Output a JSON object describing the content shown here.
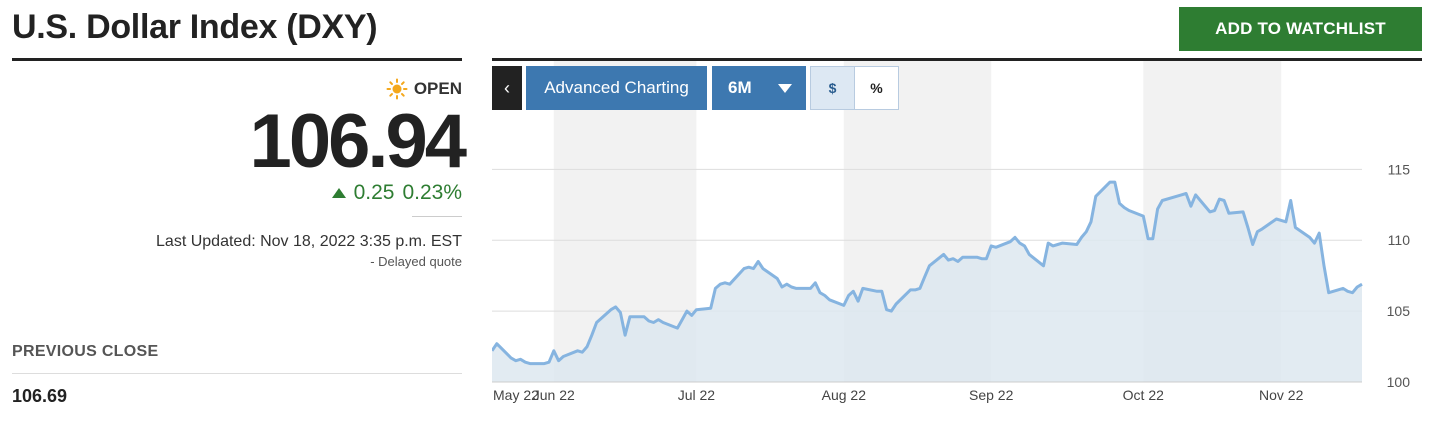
{
  "header": {
    "title": "U.S. Dollar Index (DXY)",
    "watchlist_label": "ADD TO WATCHLIST"
  },
  "quote": {
    "market_status": "OPEN",
    "price": "106.94",
    "change": "0.25",
    "change_pct": "0.23%",
    "last_updated": "Last Updated: Nov 18, 2022 3:35 p.m. EST",
    "delayed_note": "-  Delayed quote",
    "positive_color": "#2e7d32"
  },
  "previous_close": {
    "label": "PREVIOUS CLOSE",
    "value": "106.69"
  },
  "toolbar": {
    "back_label": "‹",
    "advanced_label": "Advanced Charting",
    "range_label": "6M",
    "dollar_label": "$",
    "percent_label": "%"
  },
  "chart_data": {
    "type": "area",
    "line_color": "#86b4e0",
    "fill_color": "#dde8f0",
    "ylim": [
      100,
      117
    ],
    "y_ticks": [
      "100",
      "105",
      "110",
      "115"
    ],
    "x_ticks": [
      {
        "label": "May 22",
        "date": "2022-05-19"
      },
      {
        "label": "Jun 22",
        "date": "2022-06-01"
      },
      {
        "label": "Jul 22",
        "date": "2022-07-01"
      },
      {
        "label": "Aug 22",
        "date": "2022-08-01"
      },
      {
        "label": "Sep 22",
        "date": "2022-09-01"
      },
      {
        "label": "Oct 22",
        "date": "2022-10-03"
      },
      {
        "label": "Nov 22",
        "date": "2022-11-01"
      }
    ],
    "x_range": [
      "2022-05-19",
      "2022-11-18"
    ],
    "month_bands": [
      [
        "2022-06-01",
        "2022-07-01"
      ],
      [
        "2022-08-01",
        "2022-09-01"
      ],
      [
        "2022-10-03",
        "2022-11-01"
      ]
    ],
    "series": [
      {
        "points": [
          [
            "2022-05-19",
            102.2
          ],
          [
            "2022-05-20",
            102.7
          ],
          [
            "2022-05-23",
            101.7
          ],
          [
            "2022-05-24",
            101.5
          ],
          [
            "2022-05-25",
            101.6
          ],
          [
            "2022-05-26",
            101.4
          ],
          [
            "2022-05-27",
            101.3
          ],
          [
            "2022-05-30",
            101.3
          ],
          [
            "2022-05-31",
            101.4
          ],
          [
            "2022-06-01",
            102.2
          ],
          [
            "2022-06-02",
            101.5
          ],
          [
            "2022-06-03",
            101.8
          ],
          [
            "2022-06-06",
            102.2
          ],
          [
            "2022-06-07",
            102.1
          ],
          [
            "2022-06-08",
            102.5
          ],
          [
            "2022-06-09",
            103.3
          ],
          [
            "2022-06-10",
            104.2
          ],
          [
            "2022-06-13",
            105.1
          ],
          [
            "2022-06-14",
            105.3
          ],
          [
            "2022-06-15",
            104.9
          ],
          [
            "2022-06-16",
            103.3
          ],
          [
            "2022-06-17",
            104.6
          ],
          [
            "2022-06-20",
            104.6
          ],
          [
            "2022-06-21",
            104.3
          ],
          [
            "2022-06-22",
            104.2
          ],
          [
            "2022-06-23",
            104.4
          ],
          [
            "2022-06-24",
            104.2
          ],
          [
            "2022-06-27",
            103.8
          ],
          [
            "2022-06-28",
            104.4
          ],
          [
            "2022-06-29",
            105.0
          ],
          [
            "2022-06-30",
            104.7
          ],
          [
            "2022-07-01",
            105.1
          ],
          [
            "2022-07-04",
            105.2
          ],
          [
            "2022-07-05",
            106.6
          ],
          [
            "2022-07-06",
            106.9
          ],
          [
            "2022-07-07",
            107.0
          ],
          [
            "2022-07-08",
            106.9
          ],
          [
            "2022-07-11",
            108.0
          ],
          [
            "2022-07-12",
            108.1
          ],
          [
            "2022-07-13",
            108.0
          ],
          [
            "2022-07-14",
            108.5
          ],
          [
            "2022-07-15",
            108.0
          ],
          [
            "2022-07-18",
            107.3
          ],
          [
            "2022-07-19",
            106.7
          ],
          [
            "2022-07-20",
            106.9
          ],
          [
            "2022-07-21",
            106.7
          ],
          [
            "2022-07-22",
            106.6
          ],
          [
            "2022-07-25",
            106.6
          ],
          [
            "2022-07-26",
            107.0
          ],
          [
            "2022-07-27",
            106.3
          ],
          [
            "2022-07-28",
            106.1
          ],
          [
            "2022-07-29",
            105.8
          ],
          [
            "2022-08-01",
            105.4
          ],
          [
            "2022-08-02",
            106.1
          ],
          [
            "2022-08-03",
            106.4
          ],
          [
            "2022-08-04",
            105.7
          ],
          [
            "2022-08-05",
            106.6
          ],
          [
            "2022-08-08",
            106.4
          ],
          [
            "2022-08-09",
            106.4
          ],
          [
            "2022-08-10",
            105.1
          ],
          [
            "2022-08-11",
            105.0
          ],
          [
            "2022-08-12",
            105.5
          ],
          [
            "2022-08-15",
            106.5
          ],
          [
            "2022-08-16",
            106.5
          ],
          [
            "2022-08-17",
            106.6
          ],
          [
            "2022-08-18",
            107.4
          ],
          [
            "2022-08-19",
            108.2
          ],
          [
            "2022-08-22",
            109.0
          ],
          [
            "2022-08-23",
            108.6
          ],
          [
            "2022-08-24",
            108.7
          ],
          [
            "2022-08-25",
            108.5
          ],
          [
            "2022-08-26",
            108.8
          ],
          [
            "2022-08-29",
            108.8
          ],
          [
            "2022-08-30",
            108.7
          ],
          [
            "2022-08-31",
            108.7
          ],
          [
            "2022-09-01",
            109.6
          ],
          [
            "2022-09-02",
            109.5
          ],
          [
            "2022-09-05",
            109.9
          ],
          [
            "2022-09-06",
            110.2
          ],
          [
            "2022-09-07",
            109.8
          ],
          [
            "2022-09-08",
            109.6
          ],
          [
            "2022-09-09",
            109.0
          ],
          [
            "2022-09-12",
            108.2
          ],
          [
            "2022-09-13",
            109.8
          ],
          [
            "2022-09-14",
            109.6
          ],
          [
            "2022-09-15",
            109.7
          ],
          [
            "2022-09-16",
            109.8
          ],
          [
            "2022-09-19",
            109.7
          ],
          [
            "2022-09-20",
            110.2
          ],
          [
            "2022-09-21",
            110.6
          ],
          [
            "2022-09-22",
            111.3
          ],
          [
            "2022-09-23",
            113.1
          ],
          [
            "2022-09-26",
            114.1
          ],
          [
            "2022-09-27",
            114.1
          ],
          [
            "2022-09-28",
            112.6
          ],
          [
            "2022-09-29",
            112.3
          ],
          [
            "2022-09-30",
            112.1
          ],
          [
            "2022-10-03",
            111.7
          ],
          [
            "2022-10-04",
            110.1
          ],
          [
            "2022-10-05",
            110.1
          ],
          [
            "2022-10-06",
            112.2
          ],
          [
            "2022-10-07",
            112.8
          ],
          [
            "2022-10-10",
            113.1
          ],
          [
            "2022-10-11",
            113.2
          ],
          [
            "2022-10-12",
            113.3
          ],
          [
            "2022-10-13",
            112.4
          ],
          [
            "2022-10-14",
            113.2
          ],
          [
            "2022-10-17",
            112.0
          ],
          [
            "2022-10-18",
            112.1
          ],
          [
            "2022-10-19",
            112.9
          ],
          [
            "2022-10-20",
            112.8
          ],
          [
            "2022-10-21",
            111.9
          ],
          [
            "2022-10-24",
            112.0
          ],
          [
            "2022-10-25",
            110.9
          ],
          [
            "2022-10-26",
            109.7
          ],
          [
            "2022-10-27",
            110.6
          ],
          [
            "2022-10-28",
            110.8
          ],
          [
            "2022-10-31",
            111.5
          ],
          [
            "2022-11-01",
            111.4
          ],
          [
            "2022-11-02",
            111.3
          ],
          [
            "2022-11-03",
            112.8
          ],
          [
            "2022-11-04",
            110.9
          ],
          [
            "2022-11-07",
            110.2
          ],
          [
            "2022-11-08",
            109.8
          ],
          [
            "2022-11-09",
            110.5
          ],
          [
            "2022-11-10",
            108.2
          ],
          [
            "2022-11-11",
            106.3
          ],
          [
            "2022-11-14",
            106.6
          ],
          [
            "2022-11-15",
            106.4
          ],
          [
            "2022-11-16",
            106.3
          ],
          [
            "2022-11-17",
            106.7
          ],
          [
            "2022-11-18",
            106.9
          ]
        ]
      }
    ]
  }
}
